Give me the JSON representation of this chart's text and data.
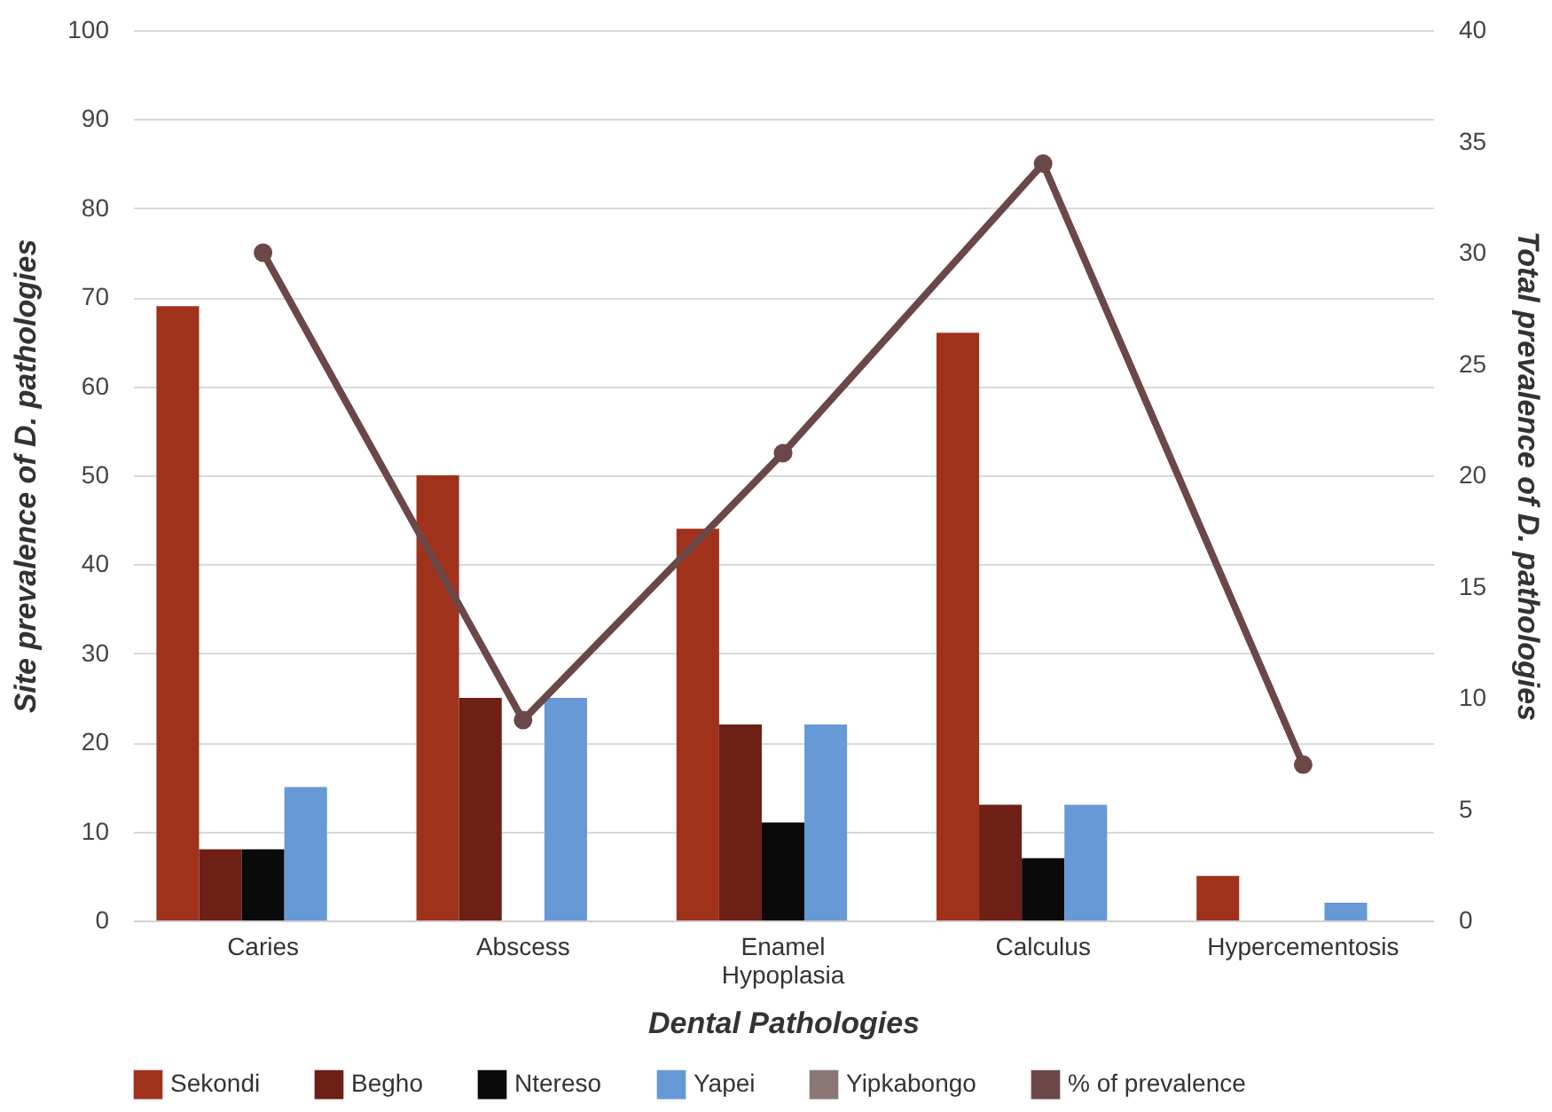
{
  "chart_data": {
    "type": "bar",
    "xlabel": "Dental Pathologies",
    "ylabel": "Site prevalence of D. pathologies",
    "y2label": "Total prevalence of D. pathologies",
    "categories": [
      "Caries",
      "Abscess",
      "Enamel Hypoplasia",
      "Calculus",
      "Hypercementosis"
    ],
    "series": [
      {
        "name": "Sekondi",
        "color": "#a0321c",
        "values": [
          69,
          50,
          44,
          66,
          5
        ]
      },
      {
        "name": "Begho",
        "color": "#6e1f16",
        "values": [
          8,
          25,
          22,
          13,
          0
        ]
      },
      {
        "name": "Ntereso",
        "color": "#0a0a0a",
        "values": [
          8,
          0,
          11,
          7,
          0
        ]
      },
      {
        "name": "Yapei",
        "color": "#6699d6",
        "values": [
          15,
          25,
          22,
          13,
          2
        ]
      },
      {
        "name": "Yipkabongo",
        "color": "#8a7775",
        "values": [
          0,
          0,
          0,
          0,
          0
        ]
      },
      {
        "name": "% of prevalence",
        "type": "line",
        "axis": "y2",
        "marker": "circle",
        "color": "#6b4747",
        "values": [
          30,
          9,
          21,
          34,
          7
        ]
      }
    ],
    "ylim": [
      0,
      100
    ],
    "yticks": [
      0,
      10,
      20,
      30,
      40,
      50,
      60,
      70,
      80,
      90,
      100
    ],
    "y2lim": [
      0,
      40
    ],
    "y2ticks": [
      0,
      5,
      10,
      15,
      20,
      25,
      30,
      35,
      40
    ],
    "grid": "y",
    "legend": "bottom"
  }
}
